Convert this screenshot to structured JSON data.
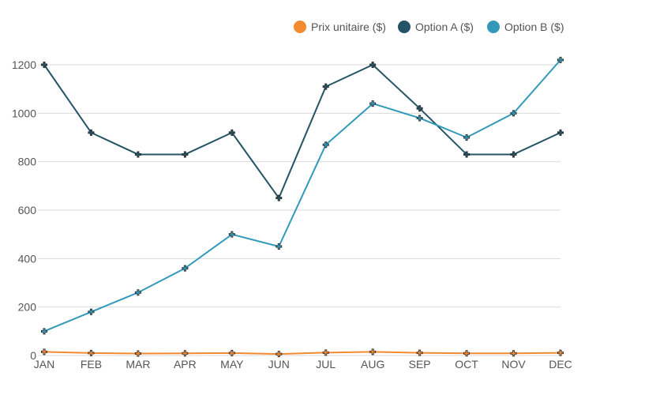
{
  "chart_data": {
    "type": "line",
    "categories": [
      "JAN",
      "FEB",
      "MAR",
      "APR",
      "MAY",
      "JUN",
      "JUL",
      "AUG",
      "SEP",
      "OCT",
      "NOV",
      "DEC"
    ],
    "ylim": [
      0,
      1200
    ],
    "yticks": [
      0,
      200,
      400,
      600,
      800,
      1000,
      1200
    ],
    "grid": true,
    "legend_position": "top-right",
    "series": [
      {
        "name": "Prix unitaire ($)",
        "color": "#f28a30",
        "values": [
          15,
          10,
          8,
          9,
          10,
          6,
          12,
          15,
          11,
          9,
          9,
          11
        ]
      },
      {
        "name": "Option A ($)",
        "color": "#245466",
        "values": [
          1200,
          920,
          830,
          830,
          920,
          650,
          1110,
          1200,
          1020,
          830,
          830,
          920
        ]
      },
      {
        "name": "Option B ($)",
        "color": "#3399bb",
        "values": [
          100,
          180,
          260,
          360,
          500,
          450,
          870,
          1040,
          980,
          900,
          1000,
          1220
        ]
      }
    ]
  }
}
